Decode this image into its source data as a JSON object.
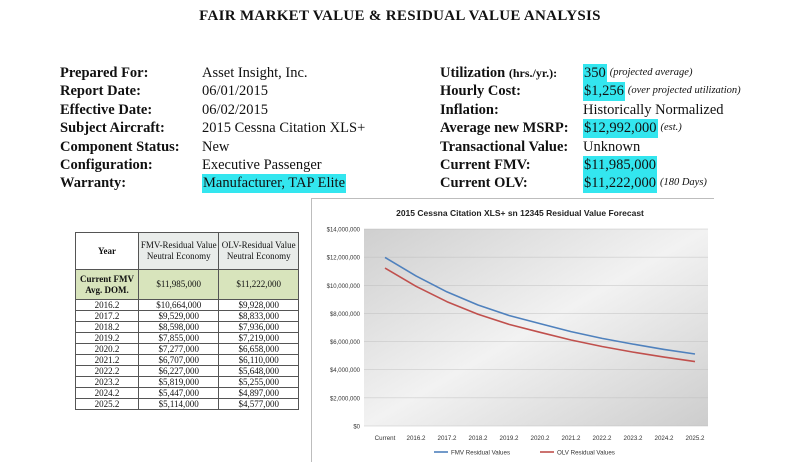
{
  "title": "FAIR MARKET VALUE & RESIDUAL VALUE ANALYSIS",
  "left_info": [
    {
      "label": "Prepared For:",
      "value": "Asset Insight, Inc.",
      "highlight": false
    },
    {
      "label": "Report  Date:",
      "value": "06/01/2015",
      "highlight": false
    },
    {
      "label": "Effective Date:",
      "value": "06/02/2015",
      "highlight": false
    },
    {
      "label": "Subject Aircraft:",
      "value": "2015 Cessna Citation XLS+",
      "highlight": false
    },
    {
      "label": "Component Status:",
      "value": "New",
      "highlight": false
    },
    {
      "label": "Configuration:",
      "value": "Executive Passenger",
      "highlight": false
    },
    {
      "label": "Warranty:",
      "value": "Manufacturer, TAP Elite",
      "highlight": true
    }
  ],
  "right_info": [
    {
      "label": "Utilization",
      "label_small": "(hrs./yr.):",
      "value": "350",
      "highlight": true,
      "note": "(projected average)"
    },
    {
      "label": "Hourly Cost:",
      "label_small": "",
      "value": "$1,256",
      "highlight": true,
      "note": "(over projected utilization)"
    },
    {
      "label": "Inflation:",
      "label_small": "",
      "value": "Historically Normalized",
      "highlight": false,
      "note": ""
    },
    {
      "label": "Average new MSRP:",
      "label_small": "",
      "value": "$12,992,000",
      "highlight": true,
      "note": "(est.)"
    },
    {
      "label": "Transactional Value:",
      "label_small": "",
      "value": "Unknown",
      "highlight": false,
      "note": ""
    },
    {
      "label": "Current FMV:",
      "label_small": "",
      "value": "$11,985,000",
      "highlight": true,
      "note": ""
    },
    {
      "label": "Current OLV:",
      "label_small": "",
      "value": "$11,222,000",
      "highlight": true,
      "note": "(180 Days)"
    }
  ],
  "table": {
    "headers": [
      "Year",
      "FMV-Residual Value Neutral Economy",
      "OLV-Residual Value Neutral Economy"
    ],
    "current_label": "Current FMV Avg. DOM.",
    "current_fmv": "$11,985,000",
    "current_olv": "$11,222,000",
    "rows": [
      {
        "year": "2016.2",
        "fmv": "$10,664,000",
        "olv": "$9,928,000"
      },
      {
        "year": "2017.2",
        "fmv": "$9,529,000",
        "olv": "$8,833,000"
      },
      {
        "year": "2018.2",
        "fmv": "$8,598,000",
        "olv": "$7,936,000"
      },
      {
        "year": "2019.2",
        "fmv": "$7,855,000",
        "olv": "$7,219,000"
      },
      {
        "year": "2020.2",
        "fmv": "$7,277,000",
        "olv": "$6,658,000"
      },
      {
        "year": "2021.2",
        "fmv": "$6,707,000",
        "olv": "$6,110,000"
      },
      {
        "year": "2022.2",
        "fmv": "$6,227,000",
        "olv": "$5,648,000"
      },
      {
        "year": "2023.2",
        "fmv": "$5,819,000",
        "olv": "$5,255,000"
      },
      {
        "year": "2024.2",
        "fmv": "$5,447,000",
        "olv": "$4,897,000"
      },
      {
        "year": "2025.2",
        "fmv": "$5,114,000",
        "olv": "$4,577,000"
      }
    ]
  },
  "chart_data": {
    "type": "line",
    "title": "2015 Cessna Citation XLS+ sn 12345 Residual Value Forecast",
    "categories": [
      "Current",
      "2016.2",
      "2017.2",
      "2018.2",
      "2019.2",
      "2020.2",
      "2021.2",
      "2022.2",
      "2023.2",
      "2024.2",
      "2025.2"
    ],
    "series": [
      {
        "name": "FMV Residual Values",
        "color": "#4f81bd",
        "values": [
          11985000,
          10664000,
          9529000,
          8598000,
          7855000,
          7277000,
          6707000,
          6227000,
          5819000,
          5447000,
          5114000
        ]
      },
      {
        "name": "OLV Residual Values",
        "color": "#c0504d",
        "values": [
          11222000,
          9928000,
          8833000,
          7936000,
          7219000,
          6658000,
          6110000,
          5648000,
          5255000,
          4897000,
          4577000
        ]
      }
    ],
    "y_ticks": [
      "$0",
      "$2,000,000",
      "$4,000,000",
      "$6,000,000",
      "$8,000,000",
      "$10,000,000",
      "$12,000,000",
      "$14,000,000"
    ],
    "ylim": [
      0,
      14000000
    ],
    "legend_position": "bottom",
    "background_color": "#d9d9d9"
  }
}
